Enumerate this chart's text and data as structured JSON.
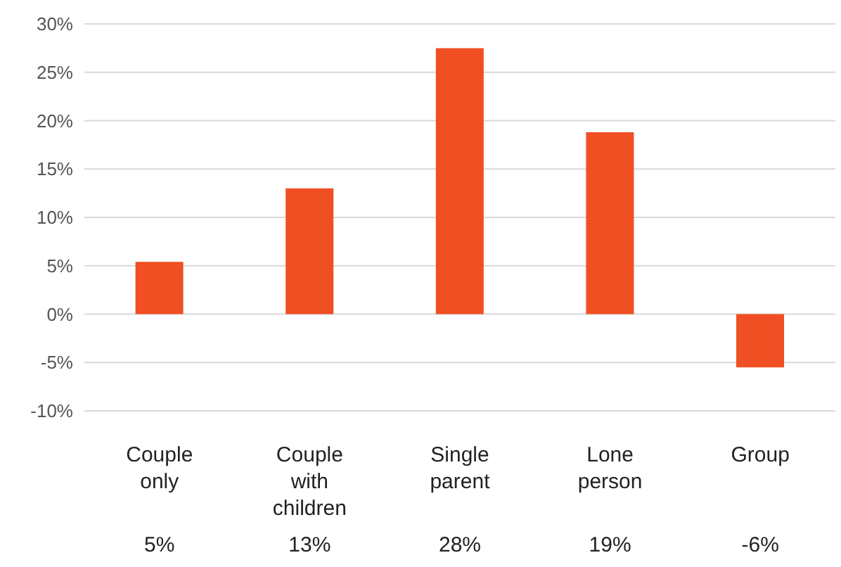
{
  "chart_data": {
    "type": "bar",
    "categories": [
      "Couple only",
      "Couple with children",
      "Single parent",
      "Lone person",
      "Group"
    ],
    "values": [
      5.4,
      13,
      27.5,
      18.8,
      -5.5
    ],
    "value_labels": [
      "5%",
      "13%",
      "28%",
      "19%",
      "-6%"
    ],
    "color": "#f04e23",
    "ylim": [
      -10,
      30
    ],
    "yticks": [
      {
        "value": -10,
        "label": "-10%"
      },
      {
        "value": -5,
        "label": "-5%"
      },
      {
        "value": 0,
        "label": "0%"
      },
      {
        "value": 5,
        "label": "5%"
      },
      {
        "value": 10,
        "label": "10%"
      },
      {
        "value": 15,
        "label": "15%"
      },
      {
        "value": 20,
        "label": "20%"
      },
      {
        "value": 25,
        "label": "25%"
      },
      {
        "value": 30,
        "label": "30%"
      }
    ],
    "grid": "y"
  }
}
